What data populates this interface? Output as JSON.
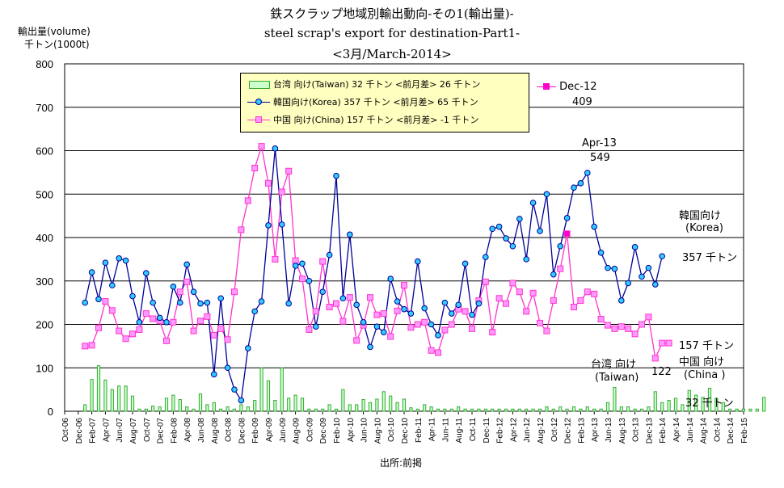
{
  "titles": {
    "line1": "鉄スクラップ地域別輸出動向-その1(輸出量)-",
    "line2": "steel scrap's export for destination-Part1-",
    "line3": "<3月/March-2014>"
  },
  "y_unit": {
    "line1": "輸出量(volume)",
    "line2": "千トン(1000t)"
  },
  "source": "出所:前掲",
  "legend": {
    "taiwan": "台湾 向け(Taiwan) 32 千トン <前月差> 26 千トン",
    "korea": "韓国向け(Korea) 357 千トン <前月差> 65 千トン",
    "china": "中国 向け(China) 157 千トン <前月差> -1 千トン"
  },
  "annotations": {
    "dec12_label": "Dec-12",
    "dec12_value": "409",
    "apr13_label": "Apr-13",
    "apr13_value": "549",
    "korea_name1": "韓国向け",
    "korea_name2": "(Korea)",
    "korea_last": "357 千トン",
    "china_last": "157 千トン",
    "china_name1": "中国 向け",
    "china_name2": "(China )",
    "china_min": "122",
    "taiwan_name1": "台湾 向け",
    "taiwan_name2": "(Taiwan)",
    "taiwan_last": "32 千トン"
  },
  "colors": {
    "taiwan": "#33aa33",
    "taiwan_fill": "#ccffcc",
    "korea": "#000099",
    "korea_marker": "#33ccff",
    "china": "#ff33cc",
    "china_marker": "#ff99ff",
    "china_highlight": "#ff00cc",
    "grid": "#000000"
  },
  "chart_data": {
    "type": "line",
    "ylim": [
      0,
      800
    ],
    "yticks": [
      0,
      100,
      200,
      300,
      400,
      500,
      600,
      700,
      800
    ],
    "x_start": "Oct-06",
    "x_end": "Feb-15",
    "xtick_labels": [
      "Oct-06",
      "Dec-06",
      "Feb-07",
      "Apr-07",
      "Jun-07",
      "Aug-07",
      "Oct-07",
      "Dec-07",
      "Feb-08",
      "Apr-08",
      "Jun-08",
      "Aug-08",
      "Oct-08",
      "Dec-08",
      "Feb-09",
      "Apr-09",
      "Jun-09",
      "Aug-09",
      "Oct-09",
      "Dec-09",
      "Feb-10",
      "Apr-10",
      "Jun-10",
      "Aug-10",
      "Oct-10",
      "Dec-10",
      "Feb-11",
      "Apr-11",
      "Jun-11",
      "Aug-11",
      "Oct-11",
      "Dec-11",
      "Feb-12",
      "Apr-12",
      "Jun-12",
      "Aug-12",
      "Oct-12",
      "Dec-12",
      "Feb-13",
      "Apr-13",
      "Jun-13",
      "Aug-13",
      "Oct-13",
      "Dec-13",
      "Feb-14",
      "Apr-14",
      "Jun-14",
      "Aug-14",
      "Oct-14",
      "Dec-14",
      "Feb-15"
    ],
    "series": [
      {
        "name": "台湾 向け(Taiwan)",
        "kind": "bar",
        "start": "Jan-07",
        "values": [
          15,
          73,
          105,
          72,
          50,
          58,
          58,
          35,
          5,
          5,
          12,
          10,
          30,
          37,
          27,
          10,
          5,
          40,
          15,
          20,
          5,
          10,
          5,
          15,
          10,
          25,
          100,
          70,
          25,
          100,
          30,
          37,
          30,
          5,
          5,
          5,
          15,
          5,
          50,
          15,
          15,
          27,
          20,
          28,
          45,
          35,
          20,
          28,
          8,
          5,
          15,
          10,
          5,
          5,
          5,
          10,
          5,
          5,
          5,
          5,
          5,
          5,
          5,
          5,
          5,
          5,
          5,
          5,
          10,
          5,
          10,
          5,
          10,
          5,
          10,
          5,
          5,
          20,
          55,
          10,
          10,
          5,
          5,
          10,
          45,
          20,
          25,
          30,
          15,
          48,
          37,
          32,
          53,
          30,
          20,
          5,
          5,
          5,
          5,
          5,
          32
        ]
      },
      {
        "name": "韓国向け(Korea)",
        "kind": "line",
        "start": "Jan-07",
        "values": [
          250,
          320,
          258,
          342,
          290,
          352,
          347,
          265,
          205,
          318,
          250,
          215,
          205,
          287,
          250,
          338,
          275,
          248,
          250,
          85,
          260,
          100,
          50,
          25,
          145,
          230,
          253,
          428,
          605,
          430,
          248,
          335,
          340,
          300,
          195,
          275,
          360,
          542,
          260,
          407,
          245,
          205,
          148,
          195,
          182,
          305,
          253,
          235,
          225,
          345,
          237,
          200,
          175,
          250,
          225,
          245,
          340,
          222,
          248,
          355,
          420,
          425,
          398,
          380,
          443,
          350,
          480,
          415,
          500,
          315,
          380,
          445,
          515,
          525,
          549,
          425,
          365,
          330,
          328,
          255,
          295,
          378,
          310,
          330,
          292,
          357
        ]
      },
      {
        "name": "中国 向け(China)",
        "kind": "line",
        "start": "Jan-07",
        "values": [
          150,
          152,
          192,
          253,
          232,
          185,
          167,
          178,
          188,
          225,
          213,
          208,
          162,
          205,
          275,
          298,
          185,
          208,
          218,
          175,
          190,
          165,
          275,
          418,
          485,
          560,
          610,
          525,
          350,
          505,
          553,
          347,
          305,
          188,
          230,
          345,
          240,
          248,
          207,
          262,
          163,
          198,
          262,
          222,
          225,
          172,
          231,
          290,
          193,
          200,
          205,
          140,
          135,
          187,
          200,
          235,
          230,
          190,
          255,
          298,
          182,
          260,
          248,
          295,
          275,
          230,
          272,
          203,
          185,
          255,
          328,
          409,
          240,
          255,
          275,
          270,
          212,
          198,
          190,
          195,
          190,
          178,
          200,
          217,
          122,
          157,
          157
        ]
      }
    ]
  }
}
